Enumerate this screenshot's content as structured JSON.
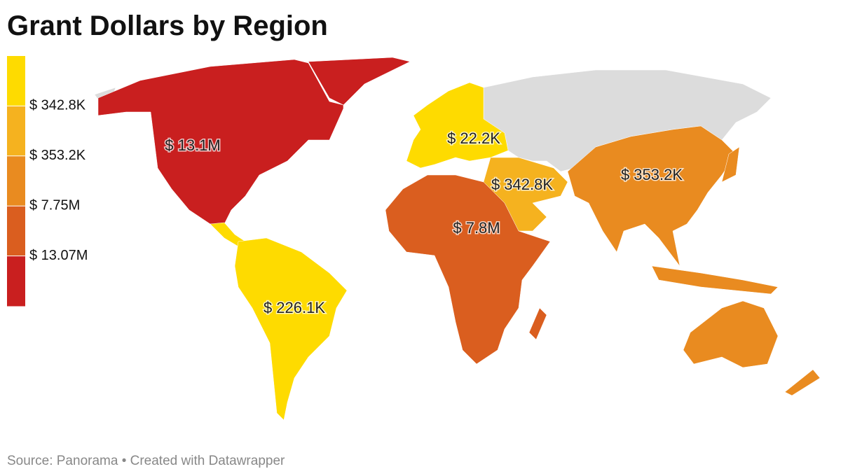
{
  "title": "Grant Dollars by Region",
  "legend": {
    "colors": [
      "#fedb00",
      "#f5b21f",
      "#e98b20",
      "#da5e1f",
      "#c91f1f"
    ],
    "labels": [
      "$ 342.8K",
      "$ 353.2K",
      "$ 7.75M",
      "$ 13.07M"
    ]
  },
  "regions": [
    {
      "label": "$ 13.1M",
      "color": "#c91f1f"
    },
    {
      "label": "$ 22.2K",
      "color": "#fedb00"
    },
    {
      "label": "$ 342.8K",
      "color": "#f5b21f"
    },
    {
      "label": "$ 353.2K",
      "color": "#e98b20"
    },
    {
      "label": "$ 7.8M",
      "color": "#da5e1f"
    },
    {
      "label": "$ 226.1K",
      "color": "#fedb00"
    },
    {
      "color": "#dcdcdc"
    }
  ],
  "source": "Source: Panorama • Created with Datawrapper"
}
